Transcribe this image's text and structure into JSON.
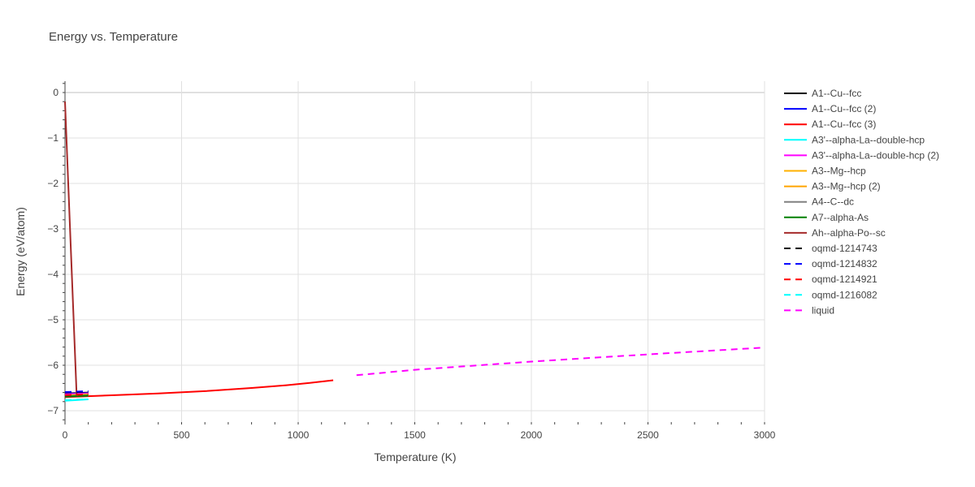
{
  "chart_data": {
    "type": "line",
    "title": "Energy vs. Temperature",
    "xlabel": "Temperature (K)",
    "ylabel": "Energy (eV/atom)",
    "xlim": [
      0,
      3000
    ],
    "ylim": [
      -7.25,
      0.25
    ],
    "xticks": [
      0,
      500,
      1000,
      1500,
      2000,
      2500,
      3000
    ],
    "yticks": [
      0,
      -1,
      -2,
      -3,
      -4,
      -5,
      -6,
      -7
    ],
    "grid": true,
    "legend_position": "right",
    "series": [
      {
        "name": "A1--Cu--fcc",
        "color": "#000000",
        "dash": false,
        "x": [
          0,
          100
        ],
        "y": [
          -6.62,
          -6.6
        ]
      },
      {
        "name": "A1--Cu--fcc (2)",
        "color": "#0000ff",
        "dash": false,
        "x": [
          0,
          100
        ],
        "y": [
          -6.63,
          -6.61
        ]
      },
      {
        "name": "A1--Cu--fcc (3)",
        "color": "#ff0000",
        "dash": false,
        "x": [
          0,
          200,
          400,
          600,
          800,
          950,
          1050,
          1150
        ],
        "y": [
          -6.7,
          -6.66,
          -6.62,
          -6.57,
          -6.5,
          -6.44,
          -6.39,
          -6.33
        ]
      },
      {
        "name": "A3'--alpha-La--double-hcp",
        "color": "#00ffff",
        "dash": false,
        "x": [
          0,
          100
        ],
        "y": [
          -6.78,
          -6.75
        ]
      },
      {
        "name": "A3'--alpha-La--double-hcp (2)",
        "color": "#ff00ff",
        "dash": false,
        "x": [
          0,
          100
        ],
        "y": [
          -6.64,
          -6.62
        ]
      },
      {
        "name": "A3--Mg--hcp",
        "color": "#ffb000",
        "dash": false,
        "x": [
          0,
          100
        ],
        "y": [
          -6.66,
          -6.64
        ]
      },
      {
        "name": "A3--Mg--hcp (2)",
        "color": "#ffa500",
        "dash": false,
        "x": [
          0,
          100
        ],
        "y": [
          -6.67,
          -6.65
        ]
      },
      {
        "name": "A4--C--dc",
        "color": "#808080",
        "dash": false,
        "x": [
          0,
          100
        ],
        "y": [
          -6.68,
          -6.66
        ]
      },
      {
        "name": "A7--alpha-As",
        "color": "#008000",
        "dash": false,
        "x": [
          0,
          100
        ],
        "y": [
          -6.69,
          -6.67
        ]
      },
      {
        "name": "Ah--alpha-Po--sc",
        "color": "#a52a2a",
        "dash": false,
        "x": [
          0,
          50,
          55
        ],
        "y": [
          -0.2,
          -6.65,
          -6.67
        ]
      },
      {
        "name": "oqmd-1214743",
        "color": "#000000",
        "dash": true,
        "x": [
          0,
          100
        ],
        "y": [
          -6.6,
          -6.58
        ]
      },
      {
        "name": "oqmd-1214832",
        "color": "#0000ff",
        "dash": true,
        "x": [
          0,
          100
        ],
        "y": [
          -6.59,
          -6.57
        ]
      },
      {
        "name": "oqmd-1214921",
        "color": "#ff0000",
        "dash": true,
        "x": [
          0,
          100
        ],
        "y": [
          -6.66,
          -6.64
        ]
      },
      {
        "name": "oqmd-1216082",
        "color": "#00ffff",
        "dash": true,
        "x": [
          0,
          100
        ],
        "y": [
          -6.77,
          -6.75
        ]
      },
      {
        "name": "liquid",
        "color": "#ff00ff",
        "dash": true,
        "x": [
          1250,
          1500,
          2000,
          2500,
          3000
        ],
        "y": [
          -6.22,
          -6.1,
          -5.92,
          -5.76,
          -5.61
        ]
      }
    ]
  }
}
